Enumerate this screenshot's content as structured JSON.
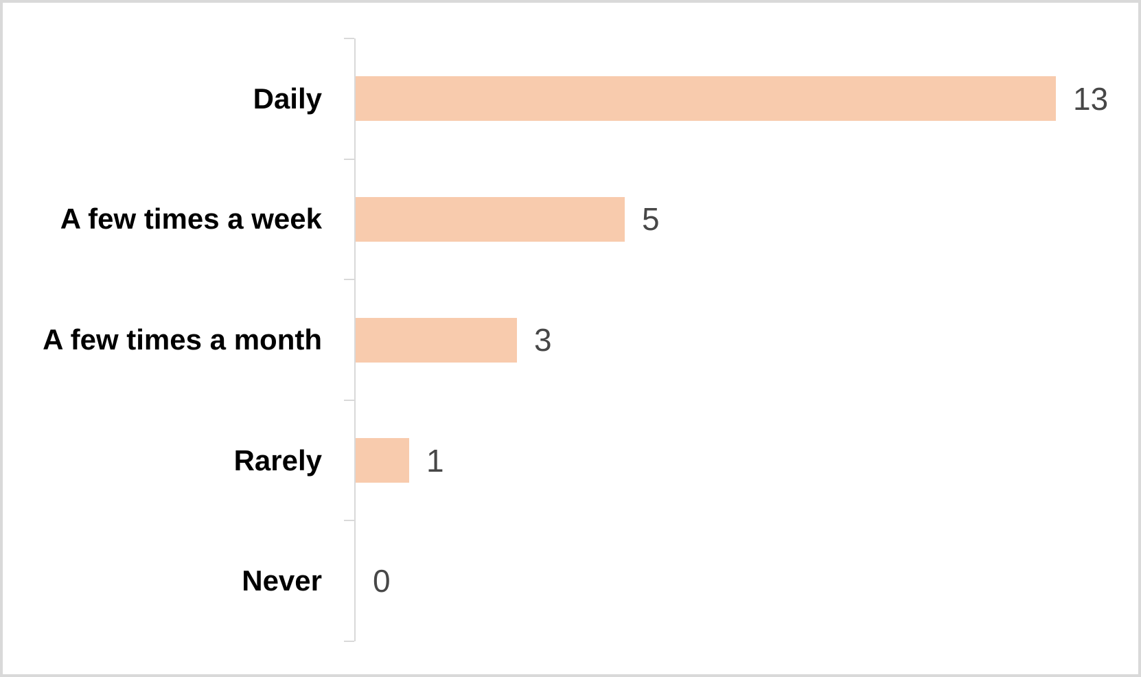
{
  "chart_data": {
    "type": "bar",
    "orientation": "horizontal",
    "title": "",
    "xlabel": "",
    "ylabel": "",
    "grid": false,
    "legend": "none",
    "categories": [
      "Daily",
      "A few times a week",
      "A few times a month",
      "Rarely",
      "Never"
    ],
    "values": [
      13,
      5,
      3,
      1,
      0
    ],
    "value_labels": [
      "13",
      "5",
      "3",
      "1",
      "0"
    ],
    "colors": {
      "bar_fill": "#F8CBAD",
      "category_label": "#000000",
      "value_label": "#474747",
      "axis_line": "#D9D9D9",
      "frame_border": "#D9D9D9",
      "background": "#FFFFFF"
    }
  }
}
